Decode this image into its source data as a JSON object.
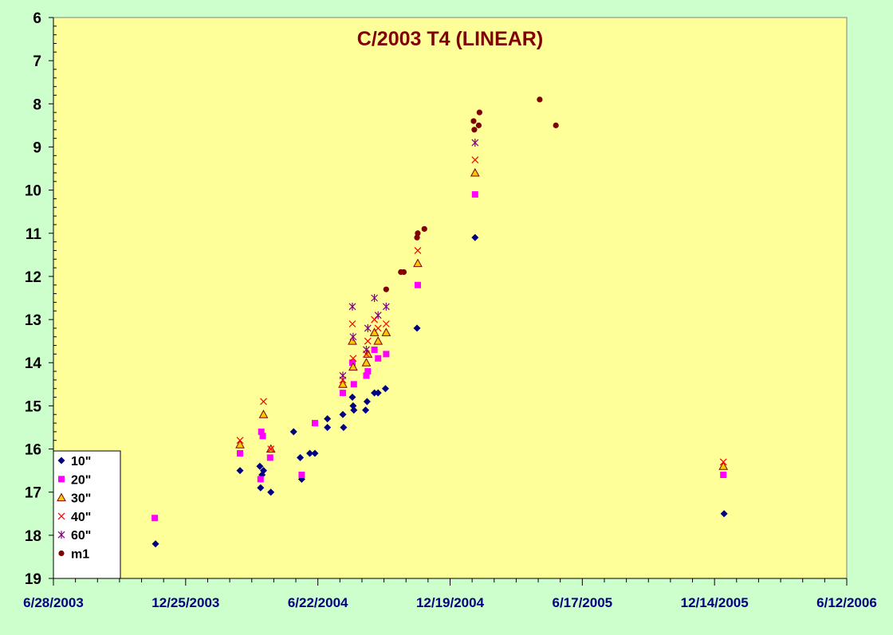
{
  "chart_data": {
    "type": "scatter",
    "title": "C/2003 T4 (LINEAR)",
    "xlabel": "",
    "ylabel": "",
    "x_axis": {
      "type": "date",
      "min": "2003-06-28",
      "max": "2006-06-12",
      "major_step_days": 180,
      "minor_step_days": 30,
      "tick_labels": [
        "6/28/2003",
        "12/25/2003",
        "6/22/2004",
        "12/19/2004",
        "6/17/2005",
        "12/14/2005",
        "6/12/2006"
      ]
    },
    "y_axis": {
      "min": 6,
      "max": 19,
      "reversed": true,
      "tick_labels": [
        "6",
        "7",
        "8",
        "9",
        "10",
        "11",
        "12",
        "13",
        "14",
        "15",
        "16",
        "17",
        "18",
        "19"
      ]
    },
    "grid": false,
    "legend_position": "bottom-left",
    "colors": {
      "page_background": "#ccffcc",
      "plot_background": "#ffff99",
      "title": "#800000",
      "x_tick_labels": "#000080"
    },
    "series": [
      {
        "name": "10\"",
        "marker": "diamond",
        "color": "#000080",
        "points": [
          [
            "2003-11-14",
            18.2
          ],
          [
            "2004-03-08",
            16.5
          ],
          [
            "2004-04-04",
            16.4
          ],
          [
            "2004-04-05",
            16.9
          ],
          [
            "2004-04-07",
            16.6
          ],
          [
            "2004-04-09",
            16.5
          ],
          [
            "2004-04-19",
            17.0
          ],
          [
            "2004-05-20",
            15.6
          ],
          [
            "2004-05-29",
            16.2
          ],
          [
            "2004-05-31",
            16.7
          ],
          [
            "2004-06-11",
            16.1
          ],
          [
            "2004-06-18",
            16.1
          ],
          [
            "2004-07-05",
            15.3
          ],
          [
            "2004-07-05",
            15.5
          ],
          [
            "2004-07-26",
            15.2
          ],
          [
            "2004-07-27",
            15.5
          ],
          [
            "2004-08-08",
            14.8
          ],
          [
            "2004-08-09",
            15.0
          ],
          [
            "2004-08-10",
            15.1
          ],
          [
            "2004-08-26",
            15.1
          ],
          [
            "2004-08-28",
            14.9
          ],
          [
            "2004-09-07",
            14.7
          ],
          [
            "2004-09-12",
            14.7
          ],
          [
            "2004-09-22",
            14.6
          ],
          [
            "2004-11-04",
            13.2
          ],
          [
            "2005-01-22",
            11.1
          ],
          [
            "2005-12-27",
            17.5
          ]
        ]
      },
      {
        "name": "20\"",
        "marker": "square",
        "color": "#ff00ff",
        "points": [
          [
            "2003-11-13",
            17.6
          ],
          [
            "2004-03-08",
            16.1
          ],
          [
            "2004-04-05",
            16.7
          ],
          [
            "2004-04-06",
            15.6
          ],
          [
            "2004-04-08",
            15.7
          ],
          [
            "2004-04-18",
            16.2
          ],
          [
            "2004-05-31",
            16.6
          ],
          [
            "2004-06-18",
            15.4
          ],
          [
            "2004-07-26",
            14.7
          ],
          [
            "2004-08-08",
            14.0
          ],
          [
            "2004-08-10",
            14.5
          ],
          [
            "2004-08-27",
            14.3
          ],
          [
            "2004-08-29",
            14.2
          ],
          [
            "2004-09-07",
            13.7
          ],
          [
            "2004-09-12",
            13.9
          ],
          [
            "2004-09-23",
            13.8
          ],
          [
            "2004-11-05",
            12.2
          ],
          [
            "2005-01-22",
            10.1
          ],
          [
            "2005-12-26",
            16.6
          ]
        ]
      },
      {
        "name": "30\"",
        "marker": "triangle",
        "color": "#ffcc00",
        "stroke": "#800000",
        "points": [
          [
            "2004-03-08",
            15.9
          ],
          [
            "2004-04-09",
            15.2
          ],
          [
            "2004-04-19",
            16.0
          ],
          [
            "2004-07-26",
            14.5
          ],
          [
            "2004-08-08",
            13.5
          ],
          [
            "2004-08-09",
            14.1
          ],
          [
            "2004-08-27",
            14.0
          ],
          [
            "2004-08-29",
            13.8
          ],
          [
            "2004-09-07",
            13.3
          ],
          [
            "2004-09-12",
            13.5
          ],
          [
            "2004-09-23",
            13.3
          ],
          [
            "2004-11-05",
            11.7
          ],
          [
            "2005-01-22",
            9.6
          ],
          [
            "2005-12-26",
            16.4
          ]
        ]
      },
      {
        "name": "40\"",
        "marker": "x",
        "color": "#ff0000",
        "points": [
          [
            "2004-03-08",
            15.8
          ],
          [
            "2004-04-09",
            14.9
          ],
          [
            "2004-04-19",
            16.0
          ],
          [
            "2004-07-26",
            14.4
          ],
          [
            "2004-08-08",
            13.1
          ],
          [
            "2004-08-09",
            13.9
          ],
          [
            "2004-08-27",
            13.8
          ],
          [
            "2004-08-29",
            13.5
          ],
          [
            "2004-09-07",
            13.0
          ],
          [
            "2004-09-12",
            13.2
          ],
          [
            "2004-09-23",
            13.1
          ],
          [
            "2004-11-05",
            11.4
          ],
          [
            "2005-01-22",
            9.3
          ],
          [
            "2005-12-26",
            16.3
          ]
        ]
      },
      {
        "name": "60\"",
        "marker": "star",
        "color": "#800080",
        "points": [
          [
            "2004-07-26",
            14.3
          ],
          [
            "2004-08-08",
            12.7
          ],
          [
            "2004-08-09",
            13.4
          ],
          [
            "2004-08-27",
            13.7
          ],
          [
            "2004-08-29",
            13.2
          ],
          [
            "2004-09-07",
            12.5
          ],
          [
            "2004-09-12",
            12.9
          ],
          [
            "2004-09-23",
            12.7
          ],
          [
            "2005-01-22",
            8.9
          ]
        ]
      },
      {
        "name": "m1",
        "marker": "circle",
        "color": "#800000",
        "points": [
          [
            "2004-09-23",
            12.3
          ],
          [
            "2004-10-13",
            11.9
          ],
          [
            "2004-10-17",
            11.9
          ],
          [
            "2004-11-04",
            11.1
          ],
          [
            "2004-11-05",
            11.0
          ],
          [
            "2004-11-14",
            10.9
          ],
          [
            "2005-01-20",
            8.4
          ],
          [
            "2005-01-21",
            8.6
          ],
          [
            "2005-01-27",
            8.5
          ],
          [
            "2005-01-28",
            8.2
          ],
          [
            "2005-04-20",
            7.9
          ],
          [
            "2005-05-12",
            8.5
          ]
        ]
      }
    ]
  }
}
